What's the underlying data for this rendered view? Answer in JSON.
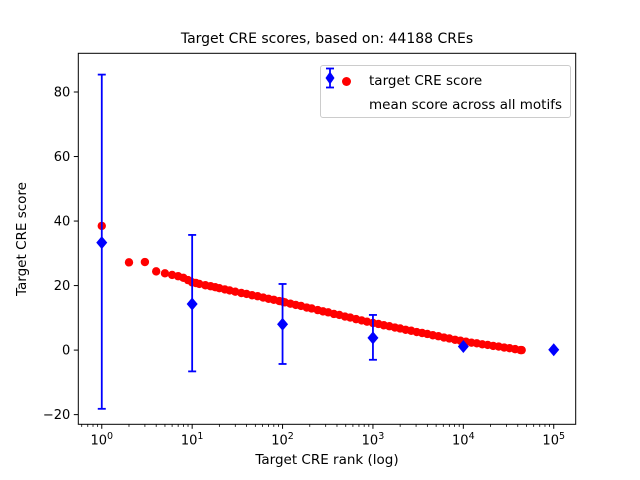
{
  "figure": {
    "title": "Target CRE scores, based on: 44188 CREs",
    "xlabel": "Target CRE rank (log)",
    "ylabel": "Target CRE score"
  },
  "legend": {
    "position": "upper right",
    "items": [
      {
        "label": "target CRE score",
        "marker": "circle",
        "color": "#ff0000"
      },
      {
        "label": "mean score across all motifs",
        "marker": "diamond-with-errorbar",
        "color": "#0000ff"
      }
    ]
  },
  "chart_data": {
    "type": "scatter",
    "title": "Target CRE scores, based on: 44188 CREs",
    "xlabel": "Target CRE rank (log)",
    "ylabel": "Target CRE score",
    "xscale": "log",
    "grid": false,
    "xlim": [
      0.55,
      175000
    ],
    "ylim": [
      -23,
      92
    ],
    "xticks": [
      1,
      10,
      100,
      1000,
      10000,
      100000
    ],
    "yticks": [
      -20,
      0,
      20,
      40,
      60,
      80
    ],
    "legend_position": "upper right",
    "series": [
      {
        "name": "target CRE score",
        "type": "scatter",
        "marker": "circle",
        "color": "#ff0000",
        "x": [
          1,
          2,
          3,
          4,
          5,
          6,
          7,
          8,
          9,
          10,
          11,
          12,
          14,
          16,
          18,
          20,
          23,
          26,
          30,
          35,
          40,
          46,
          53,
          61,
          70,
          80,
          92,
          100,
          106,
          122,
          140,
          160,
          185,
          210,
          245,
          280,
          320,
          370,
          425,
          490,
          560,
          650,
          750,
          860,
          1000,
          1150,
          1320,
          1520,
          1750,
          2000,
          2300,
          2650,
          3050,
          3500,
          4000,
          4600,
          5300,
          6100,
          7000,
          8100,
          9300,
          10700,
          12300,
          14100,
          16200,
          18600,
          21400,
          24600,
          28300,
          32500,
          37400,
          43000,
          44188
        ],
        "y": [
          38.5,
          27.2,
          27.3,
          24.4,
          23.8,
          23.3,
          22.9,
          22.4,
          21.7,
          21.0,
          20.8,
          20.5,
          20.1,
          19.8,
          19.5,
          19.2,
          18.8,
          18.5,
          18.1,
          17.7,
          17.4,
          17.0,
          16.7,
          16.3,
          15.9,
          15.6,
          15.2,
          15.0,
          14.8,
          14.4,
          14.0,
          13.7,
          13.2,
          12.9,
          12.4,
          12.0,
          11.7,
          11.2,
          10.9,
          10.4,
          10.1,
          9.6,
          9.2,
          8.8,
          8.4,
          8.1,
          7.7,
          7.4,
          7.0,
          6.7,
          6.3,
          6.0,
          5.6,
          5.3,
          5.0,
          4.6,
          4.3,
          3.9,
          3.6,
          3.2,
          2.9,
          2.6,
          2.3,
          2.1,
          1.8,
          1.6,
          1.3,
          1.1,
          0.8,
          0.6,
          0.3,
          0.0,
          0.0
        ]
      },
      {
        "name": "mean score across all motifs",
        "type": "errorbar",
        "marker": "diamond",
        "color": "#0000ff",
        "x": [
          1,
          10,
          100,
          1000,
          10000,
          100000
        ],
        "y": [
          33.3,
          14.3,
          8.0,
          3.8,
          1.1,
          0.1
        ],
        "y_lower": [
          -18.2,
          -6.6,
          -4.3,
          -3.0,
          1.1,
          0.1
        ],
        "y_upper": [
          85.4,
          35.7,
          20.5,
          10.9,
          1.1,
          0.1
        ]
      }
    ]
  }
}
